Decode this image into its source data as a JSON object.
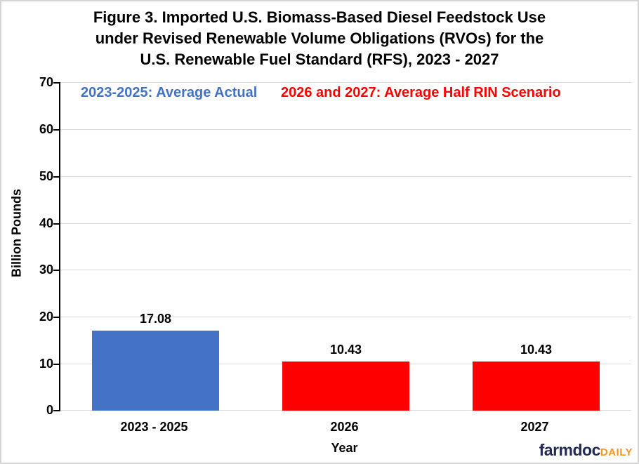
{
  "figure": {
    "title_lines": [
      "Figure 3. Imported U.S. Biomass-Based Diesel Feedstock Use",
      "under Revised Renewable Volume Obligations (RVOs) for the",
      "U.S. Renewable Fuel Standard (RFS), 2023 - 2027"
    ]
  },
  "chart_data": {
    "type": "bar",
    "title": "Figure 3. Imported U.S. Biomass-Based Diesel Feedstock Use under Revised Renewable Volume Obligations (RVOs) for the U.S. Renewable Fuel Standard (RFS), 2023 - 2027",
    "categories": [
      "2023 - 2025",
      "2026",
      "2027"
    ],
    "values": [
      17.08,
      10.43,
      10.43
    ],
    "data_labels": [
      "17.08",
      "10.43",
      "10.43"
    ],
    "bar_colors": [
      "#4472C4",
      "#FF0000",
      "#FF0000"
    ],
    "xlabel": "Year",
    "ylabel": "Billion Pounds",
    "ylim": [
      0,
      70
    ],
    "yticks": [
      0,
      10,
      20,
      30,
      40,
      50,
      60,
      70
    ],
    "grid": "horizontal",
    "legend_position": "top-inside",
    "annotations": [
      {
        "text": "2023-2025: Average Actual",
        "color": "#4472C4"
      },
      {
        "text": "2026 and 2027: Average Half RIN Scenario",
        "color": "#FF0000"
      }
    ]
  },
  "branding": {
    "name": "farmdoc",
    "suffix": "DAILY",
    "name_color": "#242A56",
    "suffix_color": "#F7941E"
  },
  "colors": {
    "grid": "#D9D9D9",
    "axis": "#000000",
    "figure_border": "#D5D5D5",
    "background": "#FFFFFF"
  }
}
